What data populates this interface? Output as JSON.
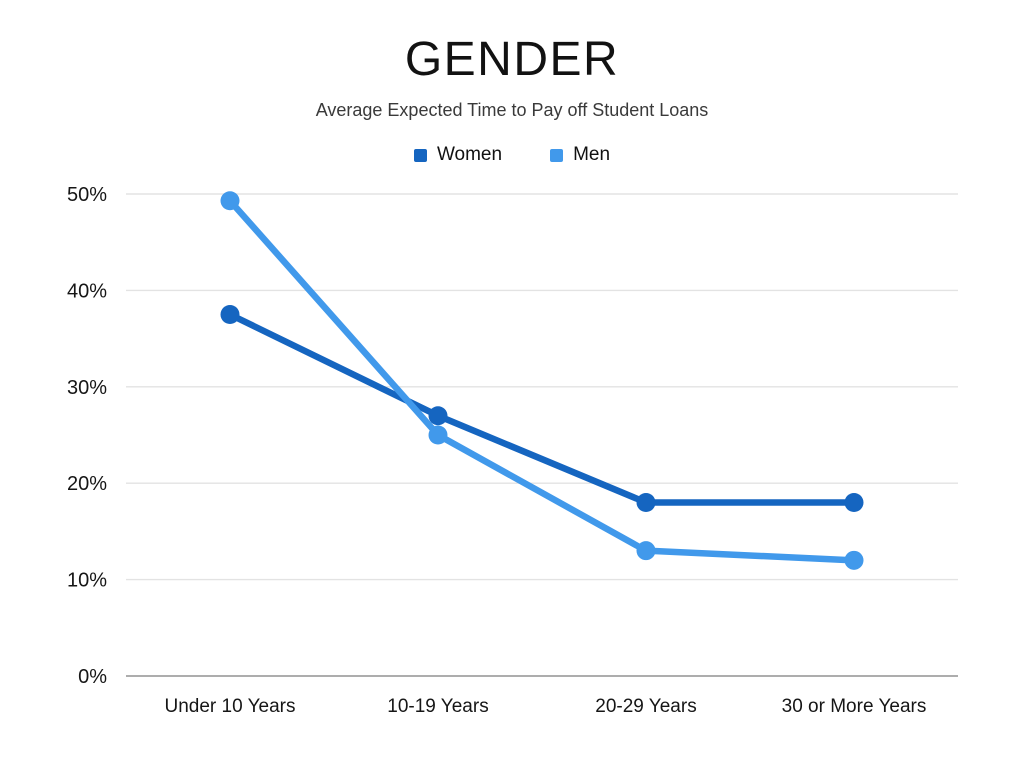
{
  "chart_data": {
    "type": "line",
    "title": "GENDER",
    "subtitle": "Average Expected Time to Pay off Student Loans",
    "categories": [
      "Under 10 Years",
      "10-19 Years",
      "20-29 Years",
      "30 or More Years"
    ],
    "series": [
      {
        "name": "Women",
        "color": "#1565C0",
        "values": [
          37.5,
          27,
          18,
          18
        ]
      },
      {
        "name": "Men",
        "color": "#4199EB",
        "values": [
          49.3,
          25,
          13,
          12
        ]
      }
    ],
    "ylim": [
      0,
      50
    ],
    "yticks": [
      0,
      10,
      20,
      30,
      40,
      50
    ],
    "ytick_labels": [
      "0%",
      "10%",
      "20%",
      "30%",
      "40%",
      "50%"
    ],
    "grid": true,
    "legend_position": "top",
    "grid_color": "#E3E3E3",
    "axis_color": "#ADADAD",
    "tick_label_color": "#161616"
  }
}
